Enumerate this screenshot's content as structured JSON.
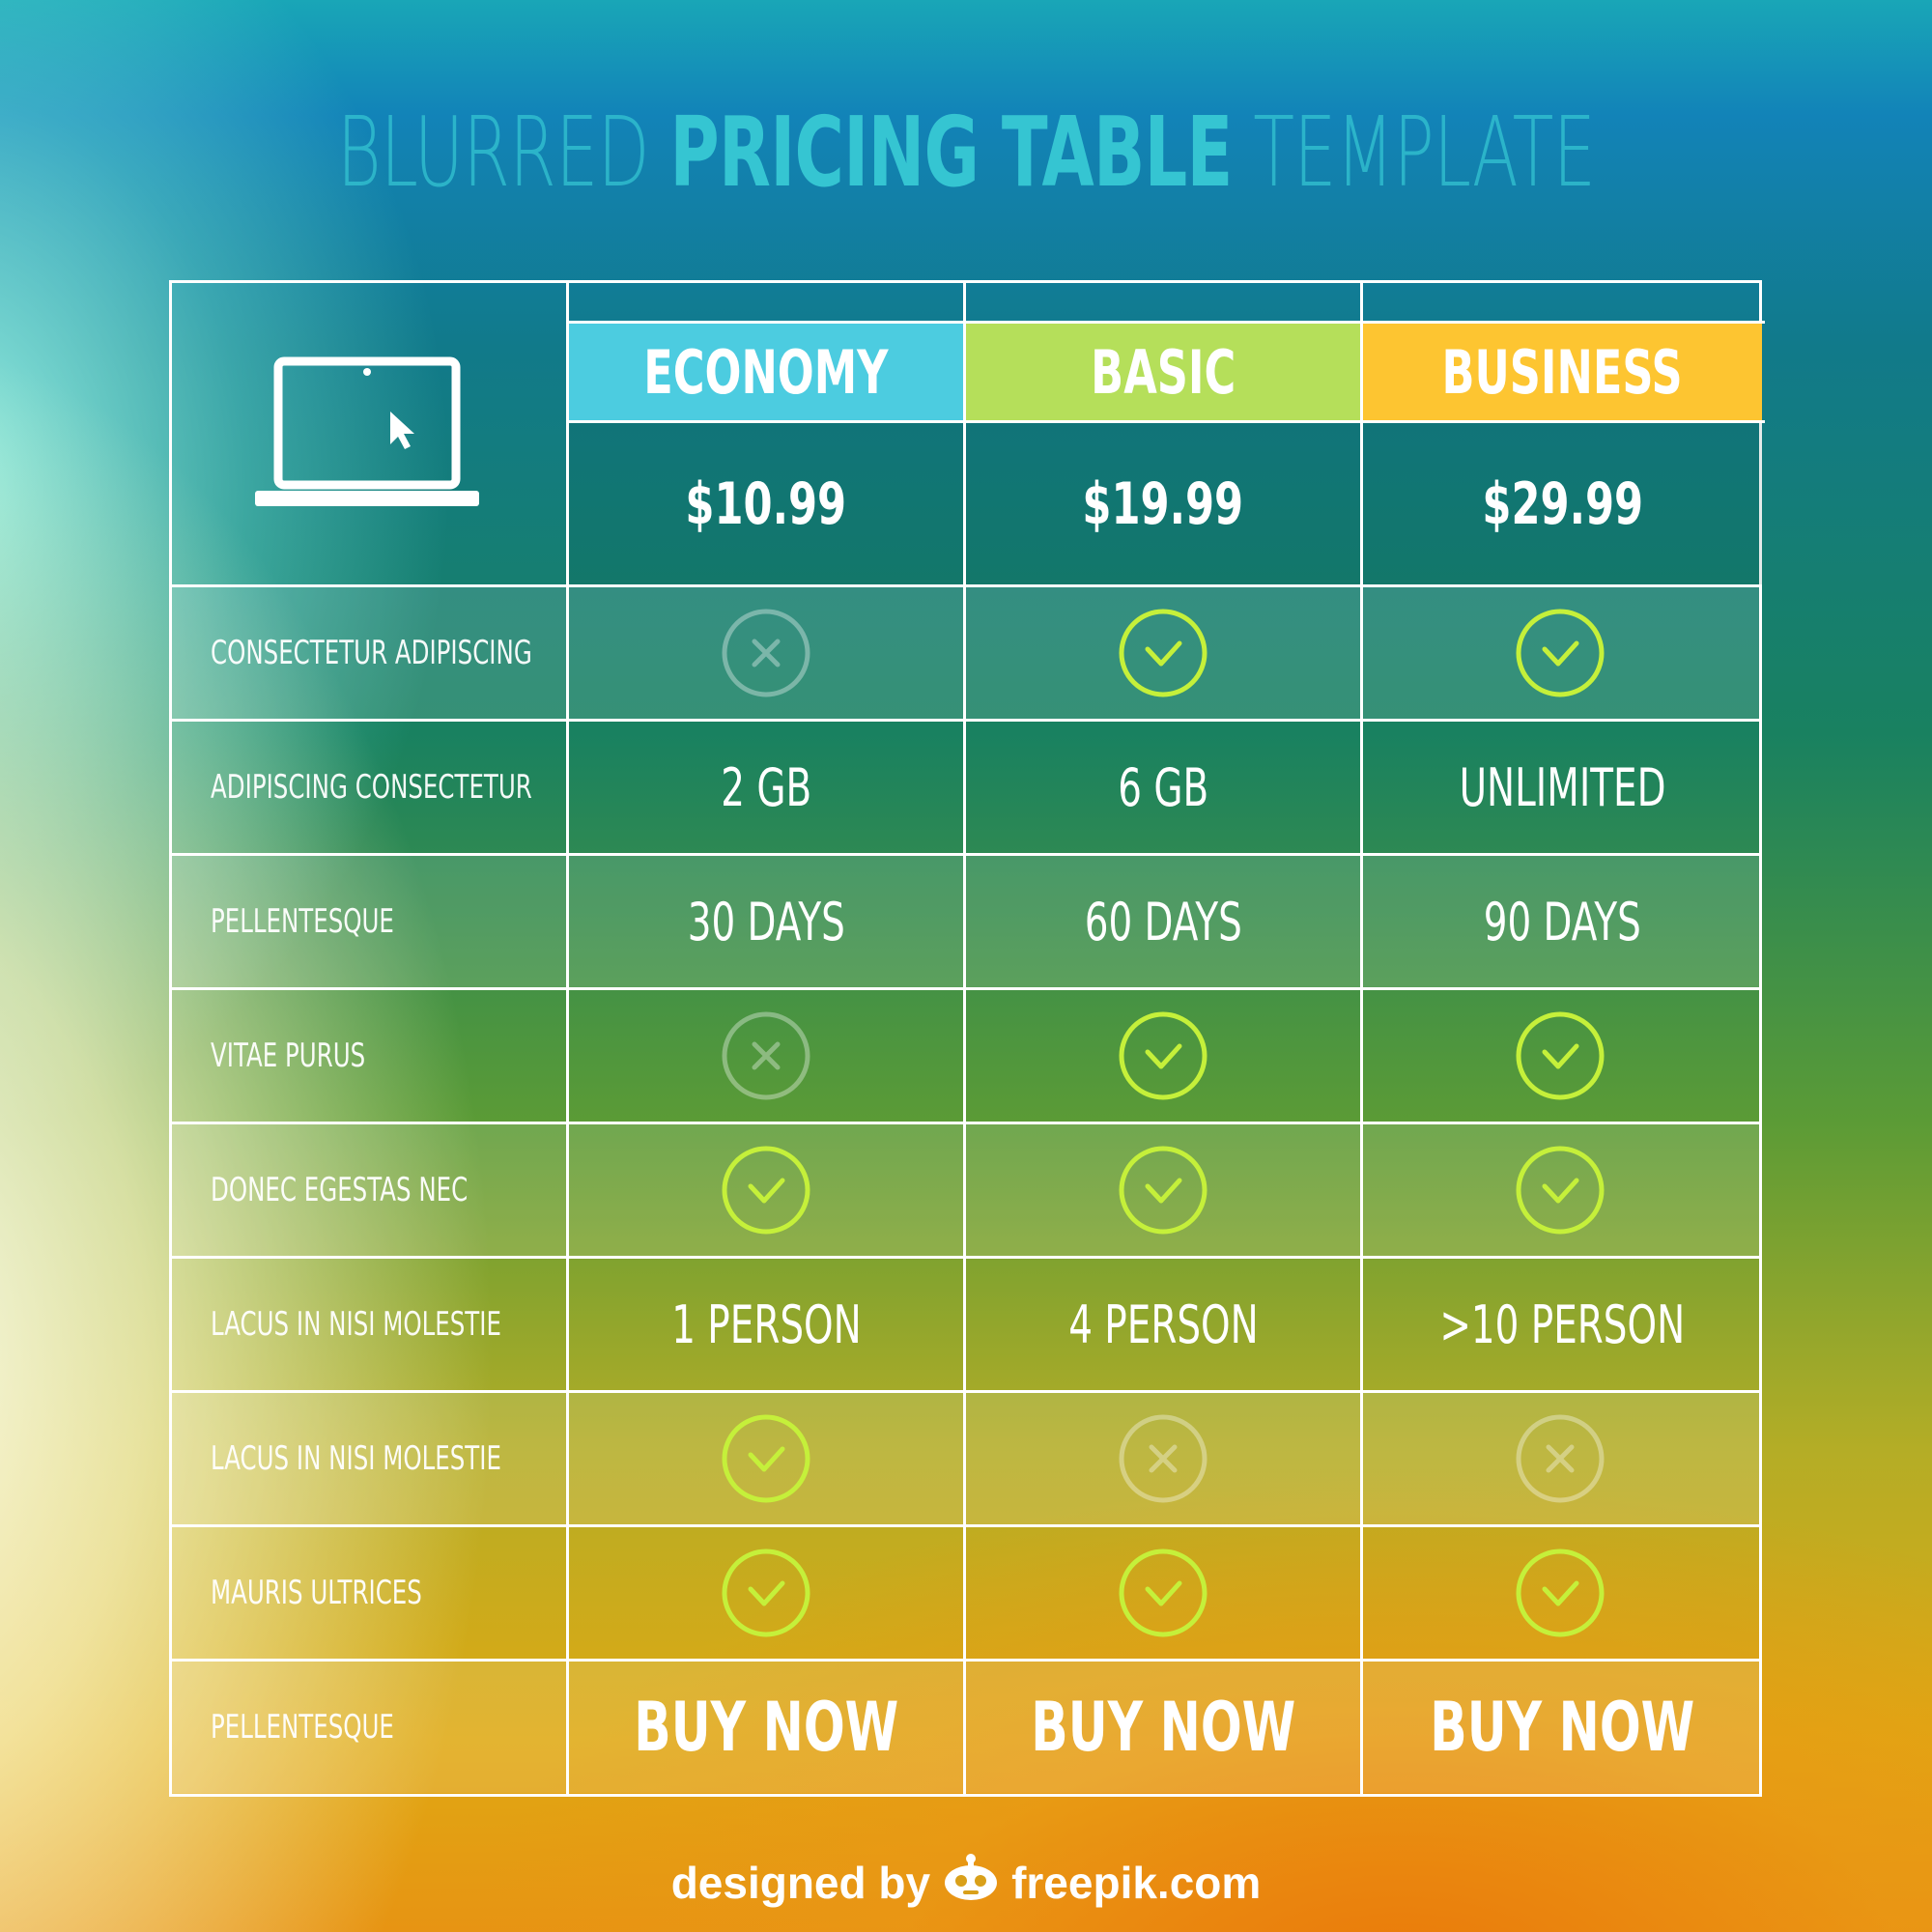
{
  "title": {
    "part1": "BLURRED",
    "part2": "PRICING TABLE",
    "part3": "TEMPLATE"
  },
  "plans": [
    {
      "name": "ECONOMY",
      "price": "$10.99",
      "color": "#4ccce0"
    },
    {
      "name": "BASIC",
      "price": "$19.99",
      "color": "#b5df5a"
    },
    {
      "name": "BUSINESS",
      "price": "$29.99",
      "color": "#fdc531"
    }
  ],
  "features": [
    {
      "label": "CONSECTETUR ADIPISCING",
      "type": "icon",
      "values": [
        "cross",
        "check",
        "check"
      ]
    },
    {
      "label": "ADIPISCING CONSECTETUR",
      "type": "text",
      "values": [
        "2 GB",
        "6 GB",
        "UNLIMITED"
      ]
    },
    {
      "label": "PELLENTESQUE",
      "type": "text",
      "values": [
        "30 DAYS",
        "60 DAYS",
        "90 DAYS"
      ]
    },
    {
      "label": "VITAE PURUS",
      "type": "icon",
      "values": [
        "cross",
        "check",
        "check"
      ]
    },
    {
      "label": "DONEC EGESTAS NEC",
      "type": "icon",
      "values": [
        "check",
        "check",
        "check"
      ]
    },
    {
      "label": "LACUS IN NISI MOLESTIE",
      "type": "text",
      "values": [
        "1 PERSON",
        "4 PERSON",
        ">10 PERSON"
      ]
    },
    {
      "label": "LACUS IN NISI MOLESTIE",
      "type": "icon",
      "values": [
        "check",
        "cross",
        "cross"
      ]
    },
    {
      "label": "MAURIS ULTRICES",
      "type": "icon",
      "values": [
        "check",
        "check",
        "check"
      ]
    },
    {
      "label": "PELLENTESQUE",
      "type": "buy",
      "values": [
        "BUY NOW",
        "BUY NOW",
        "BUY NOW"
      ]
    }
  ],
  "footer": {
    "prefix": "designed by",
    "brand": "freepik.com"
  },
  "icons": {
    "header": "laptop-icon",
    "yes": "check-circle-icon",
    "no": "cross-circle-icon",
    "footer": "freepik-logo-icon"
  }
}
